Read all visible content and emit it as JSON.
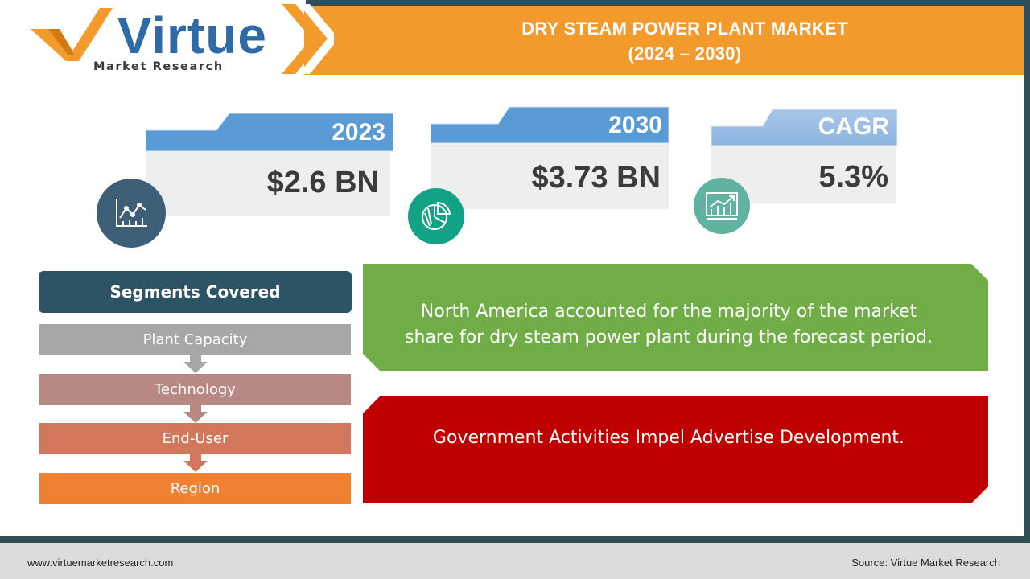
{
  "logo": {
    "wordmark": "Virtue",
    "tagline": "Market Research"
  },
  "header": {
    "title_line1": "DRY STEAM POWER PLANT MARKET",
    "title_line2": "(2024 – 2030)"
  },
  "stats": [
    {
      "label": "2023",
      "value": "$2.6 BN",
      "icon": "chart-analytics-icon"
    },
    {
      "label": "2030",
      "value": "$3.73 BN",
      "icon": "pie-chart-icon"
    },
    {
      "label": "CAGR",
      "value": "5.3%",
      "icon": "growth-chart-icon"
    }
  ],
  "segments": {
    "heading": "Segments Covered",
    "items": [
      "Plant Capacity",
      "Technology",
      "End-User",
      "Region"
    ]
  },
  "insights": {
    "green": "North America accounted for the majority of the market share for dry steam power plant during the forecast period.",
    "red": "Government Activities Impel Advertise Development."
  },
  "footer": {
    "website": "www.virtuemarketresearch.com",
    "source": "Source:  Virtue Market Research"
  },
  "colors": {
    "header_orange": "#f39a2d",
    "teal_dark": "#2f4f55",
    "card_blue": "#5b9bd5",
    "green_panel": "#70ad47",
    "red_panel": "#c00000",
    "logo_blue": "#2d6aa6"
  }
}
